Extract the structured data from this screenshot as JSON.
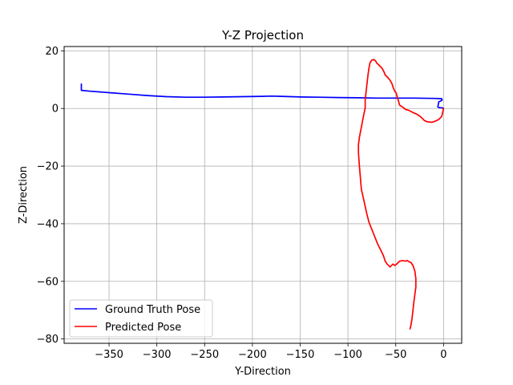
{
  "chart_data": {
    "type": "line",
    "title": "Y-Z Projection",
    "xlabel": "Y-Direction",
    "ylabel": "Z-Direction",
    "xlim": [
      -397,
      19
    ],
    "ylim": [
      -81.5,
      21.5
    ],
    "xticks": [
      -350,
      -300,
      -250,
      -200,
      -150,
      -100,
      -50,
      0
    ],
    "yticks": [
      20,
      0,
      -20,
      -40,
      -60,
      -80
    ],
    "xtick_labels": [
      "−350",
      "−300",
      "−250",
      "−200",
      "−150",
      "−100",
      "−50",
      "0"
    ],
    "ytick_labels": [
      "20",
      "0",
      "−20",
      "−40",
      "−60",
      "−80"
    ],
    "grid": true,
    "legend_position": "lower-left",
    "series": [
      {
        "name": "Ground Truth Pose",
        "color": "#0000ff",
        "points": [
          [
            -379,
            8.5
          ],
          [
            -379,
            6.3
          ],
          [
            -370,
            6.0
          ],
          [
            -350,
            5.5
          ],
          [
            -330,
            5.0
          ],
          [
            -310,
            4.5
          ],
          [
            -290,
            4.1
          ],
          [
            -270,
            3.9
          ],
          [
            -250,
            3.9
          ],
          [
            -230,
            4.0
          ],
          [
            -210,
            4.1
          ],
          [
            -190,
            4.2
          ],
          [
            -180,
            4.3
          ],
          [
            -170,
            4.2
          ],
          [
            -150,
            4.0
          ],
          [
            -130,
            3.9
          ],
          [
            -110,
            3.8
          ],
          [
            -90,
            3.7
          ],
          [
            -70,
            3.6
          ],
          [
            -50,
            3.6
          ],
          [
            -30,
            3.6
          ],
          [
            -10,
            3.5
          ],
          [
            -2,
            3.4
          ],
          [
            -1.5,
            2.9
          ],
          [
            -3,
            2.6
          ],
          [
            -5,
            2.3
          ],
          [
            -6,
            0.5
          ],
          [
            -4.5,
            0.3
          ],
          [
            -1,
            0.2
          ],
          [
            0,
            0.0
          ]
        ]
      },
      {
        "name": "Predicted Pose",
        "color": "#ff0000",
        "points": [
          [
            0,
            0
          ],
          [
            -1,
            -1.5
          ],
          [
            -2,
            -2.8
          ],
          [
            -5,
            -3.8
          ],
          [
            -8,
            -4.3
          ],
          [
            -12,
            -4.8
          ],
          [
            -17,
            -4.6
          ],
          [
            -20,
            -4.2
          ],
          [
            -22,
            -3.5
          ],
          [
            -25,
            -2.6
          ],
          [
            -28,
            -2.0
          ],
          [
            -32,
            -1.4
          ],
          [
            -36,
            -0.7
          ],
          [
            -40,
            -0.3
          ],
          [
            -42,
            0.3
          ],
          [
            -44,
            0.7
          ],
          [
            -46,
            1.2
          ],
          [
            -47,
            2.4
          ],
          [
            -48,
            3.6
          ],
          [
            -49,
            4.6
          ],
          [
            -49.5,
            5.4
          ],
          [
            -51,
            6.0
          ],
          [
            -53,
            7.5
          ],
          [
            -54,
            8.6
          ],
          [
            -56,
            9.8
          ],
          [
            -59,
            11.0
          ],
          [
            -61,
            11.6
          ],
          [
            -62,
            12.5
          ],
          [
            -64,
            13.8
          ],
          [
            -66,
            14.5
          ],
          [
            -68,
            15.2
          ],
          [
            -70,
            15.8
          ],
          [
            -71,
            16.5
          ],
          [
            -73,
            17.0
          ],
          [
            -75,
            16.8
          ],
          [
            -77,
            15.8
          ],
          [
            -78,
            14.0
          ],
          [
            -79,
            11.8
          ],
          [
            -80,
            9.0
          ],
          [
            -81,
            6.0
          ],
          [
            -82,
            3.0
          ],
          [
            -82,
            0.2
          ],
          [
            -84,
            -3.0
          ],
          [
            -86,
            -6.5
          ],
          [
            -88,
            -10.0
          ],
          [
            -89,
            -12.5
          ],
          [
            -89,
            -15.5
          ],
          [
            -88,
            -20.0
          ],
          [
            -87,
            -24.0
          ],
          [
            -86,
            -28.0
          ],
          [
            -84,
            -31.0
          ],
          [
            -82,
            -34.0
          ],
          [
            -80,
            -37.0
          ],
          [
            -78,
            -39.5
          ],
          [
            -75,
            -42.0
          ],
          [
            -72,
            -44.5
          ],
          [
            -69,
            -47.0
          ],
          [
            -66,
            -49.0
          ],
          [
            -63,
            -51.0
          ],
          [
            -61,
            -53.0
          ],
          [
            -59,
            -54.0
          ],
          [
            -56,
            -55.0
          ],
          [
            -53,
            -54.0
          ],
          [
            -51,
            -54.5
          ],
          [
            -49,
            -54.0
          ],
          [
            -46,
            -53.0
          ],
          [
            -43,
            -52.8
          ],
          [
            -40,
            -53.0
          ],
          [
            -38,
            -52.8
          ],
          [
            -36,
            -53.2
          ],
          [
            -34,
            -53.5
          ],
          [
            -32,
            -54.5
          ],
          [
            -30,
            -56.5
          ],
          [
            -29,
            -59.0
          ],
          [
            -29,
            -62.0
          ],
          [
            -30,
            -64.5
          ],
          [
            -31,
            -67.0
          ],
          [
            -32,
            -70.0
          ],
          [
            -33,
            -73.0
          ],
          [
            -34,
            -75.0
          ],
          [
            -35,
            -76.5
          ]
        ]
      }
    ]
  }
}
